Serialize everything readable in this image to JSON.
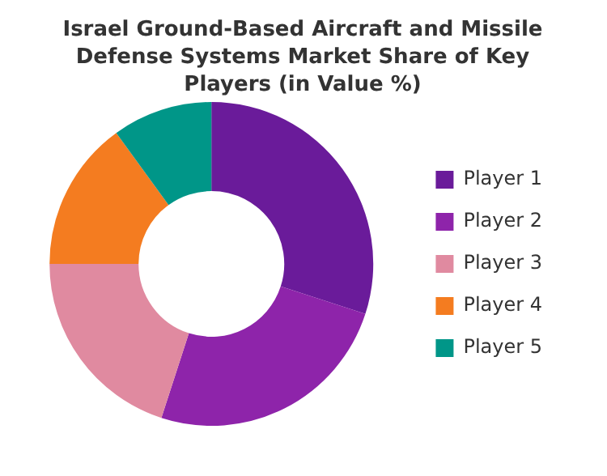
{
  "chart_data": {
    "type": "donut",
    "title": "Israel Ground-Based Aircraft and Missile Defense Systems Market Share of Key Players (in Value %)",
    "categories": [
      "Player 1",
      "Player 2",
      "Player 3",
      "Player 4",
      "Player 5"
    ],
    "values": [
      30,
      25,
      20,
      15,
      10
    ],
    "colors": [
      "#6a1b9a",
      "#8e24aa",
      "#e08aa0",
      "#f47c20",
      "#009688"
    ],
    "legend": "right"
  }
}
